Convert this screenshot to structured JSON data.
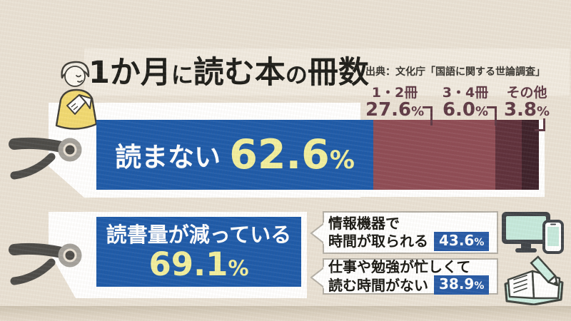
{
  "title": {
    "full": "1か月に読む本の冊数",
    "parts": [
      {
        "text": "1か月",
        "small": false
      },
      {
        "text": "に",
        "small": true
      },
      {
        "text": "読む本",
        "small": false
      },
      {
        "text": "の",
        "small": true
      },
      {
        "text": "冊数",
        "small": false
      }
    ]
  },
  "source": "出典：文化庁「国語に関する世論調査」",
  "chart_data": [
    {
      "type": "bar",
      "orientation": "horizontal-stacked",
      "title": "1か月に読む本の冊数",
      "source": "出典：文化庁「国語に関する世論調査」",
      "unit": "%",
      "categories": [
        "読まない",
        "1・2冊",
        "3・4冊",
        "その他"
      ],
      "values": [
        62.6,
        27.6,
        6.0,
        3.8
      ],
      "colors": [
        "#1b58a8",
        "#8d4a53",
        "#5d2e39",
        "#3c1f28"
      ],
      "xlim": [
        0,
        100
      ],
      "legend": "none",
      "grid": false
    },
    {
      "type": "bar",
      "unit": "%",
      "categories": [
        "読書量が減っている",
        "情報機器で時間が取られる",
        "仕事や勉強が忙しくて読む時間がない"
      ],
      "values": [
        69.1,
        43.6,
        38.9
      ]
    }
  ],
  "main_bar": {
    "label": "読まない",
    "value": "62.6",
    "unit": "%"
  },
  "seg_labels": [
    {
      "name": "1・2冊",
      "value": "27.6",
      "unit": "%"
    },
    {
      "name": "3・4冊",
      "value": "6.0",
      "unit": "%"
    },
    {
      "name": "その他",
      "value": "3.8",
      "unit": "%"
    }
  ],
  "secondary_box": {
    "label": "読書量が減っている",
    "value": "69.1",
    "unit": "%"
  },
  "callouts": [
    {
      "line1": "情報機器で",
      "line2": "時間が取られる",
      "value": "43.6",
      "unit": "%"
    },
    {
      "line1": "仕事や勉強が忙しくて",
      "line2": "読む時間がない",
      "value": "38.9",
      "unit": "%"
    }
  ],
  "colors": {
    "background": "#e9e1d4",
    "accent_blue": "#1b58a8",
    "accent_yellow": "#f1ee9b",
    "badge_blue": "#2458a5",
    "segment_1": "#8d4a53",
    "segment_2": "#5d2e39",
    "segment_3": "#3c1f28",
    "label_maroon": "#5c3743",
    "mint": "#c5e9dc",
    "tag_white": "#ffffff"
  }
}
